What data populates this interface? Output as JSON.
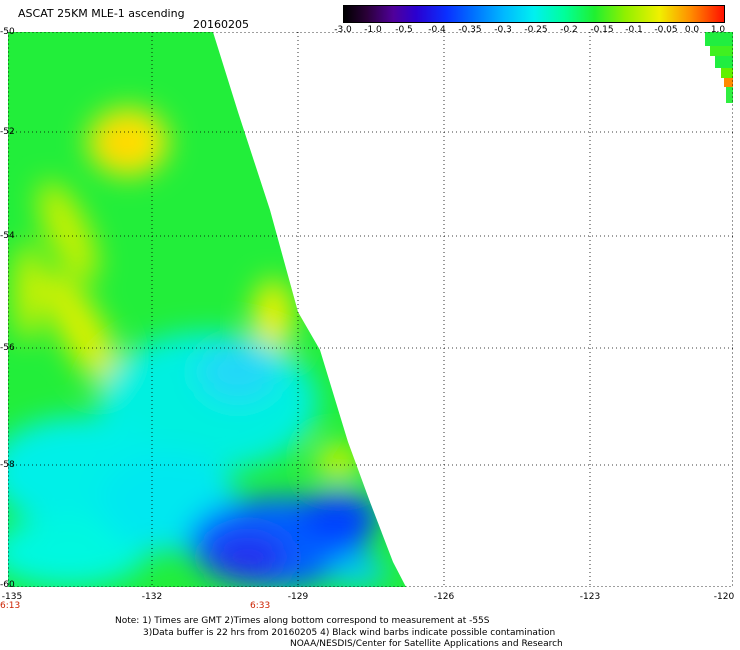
{
  "header": {
    "title": "ASCAT 25KM MLE-1 ascending",
    "date": "20160205"
  },
  "colorbar": {
    "labels": [
      "-3.0",
      "-1.0",
      "-0.5",
      "-0.4",
      "-0.35",
      "-0.3",
      "-0.25",
      "-0.2",
      "-0.15",
      "-0.1",
      "-0.05",
      "0.0",
      "1.0"
    ]
  },
  "map": {
    "lat_labels": [
      "-50",
      "-52",
      "-54",
      "-56",
      "-58",
      "-60"
    ],
    "lon_labels": [
      "-135",
      "-132",
      "-129",
      "-126",
      "-123",
      "-120"
    ],
    "time_labels": [
      "6:13",
      "6:33"
    ],
    "colors": {
      "background": "#ffffff",
      "grid": "#000000",
      "time_label": "#cc2200"
    }
  },
  "notes": {
    "line1": "Note: 1) Times are GMT 2)Times along bottom correspond to measurement at -55S",
    "line2": "3)Data buffer is 22 hrs from 20160205 4) Black wind barbs indicate possible contamination",
    "line3": "NOAA/NESDIS/Center for Satellite Applications and Research"
  }
}
